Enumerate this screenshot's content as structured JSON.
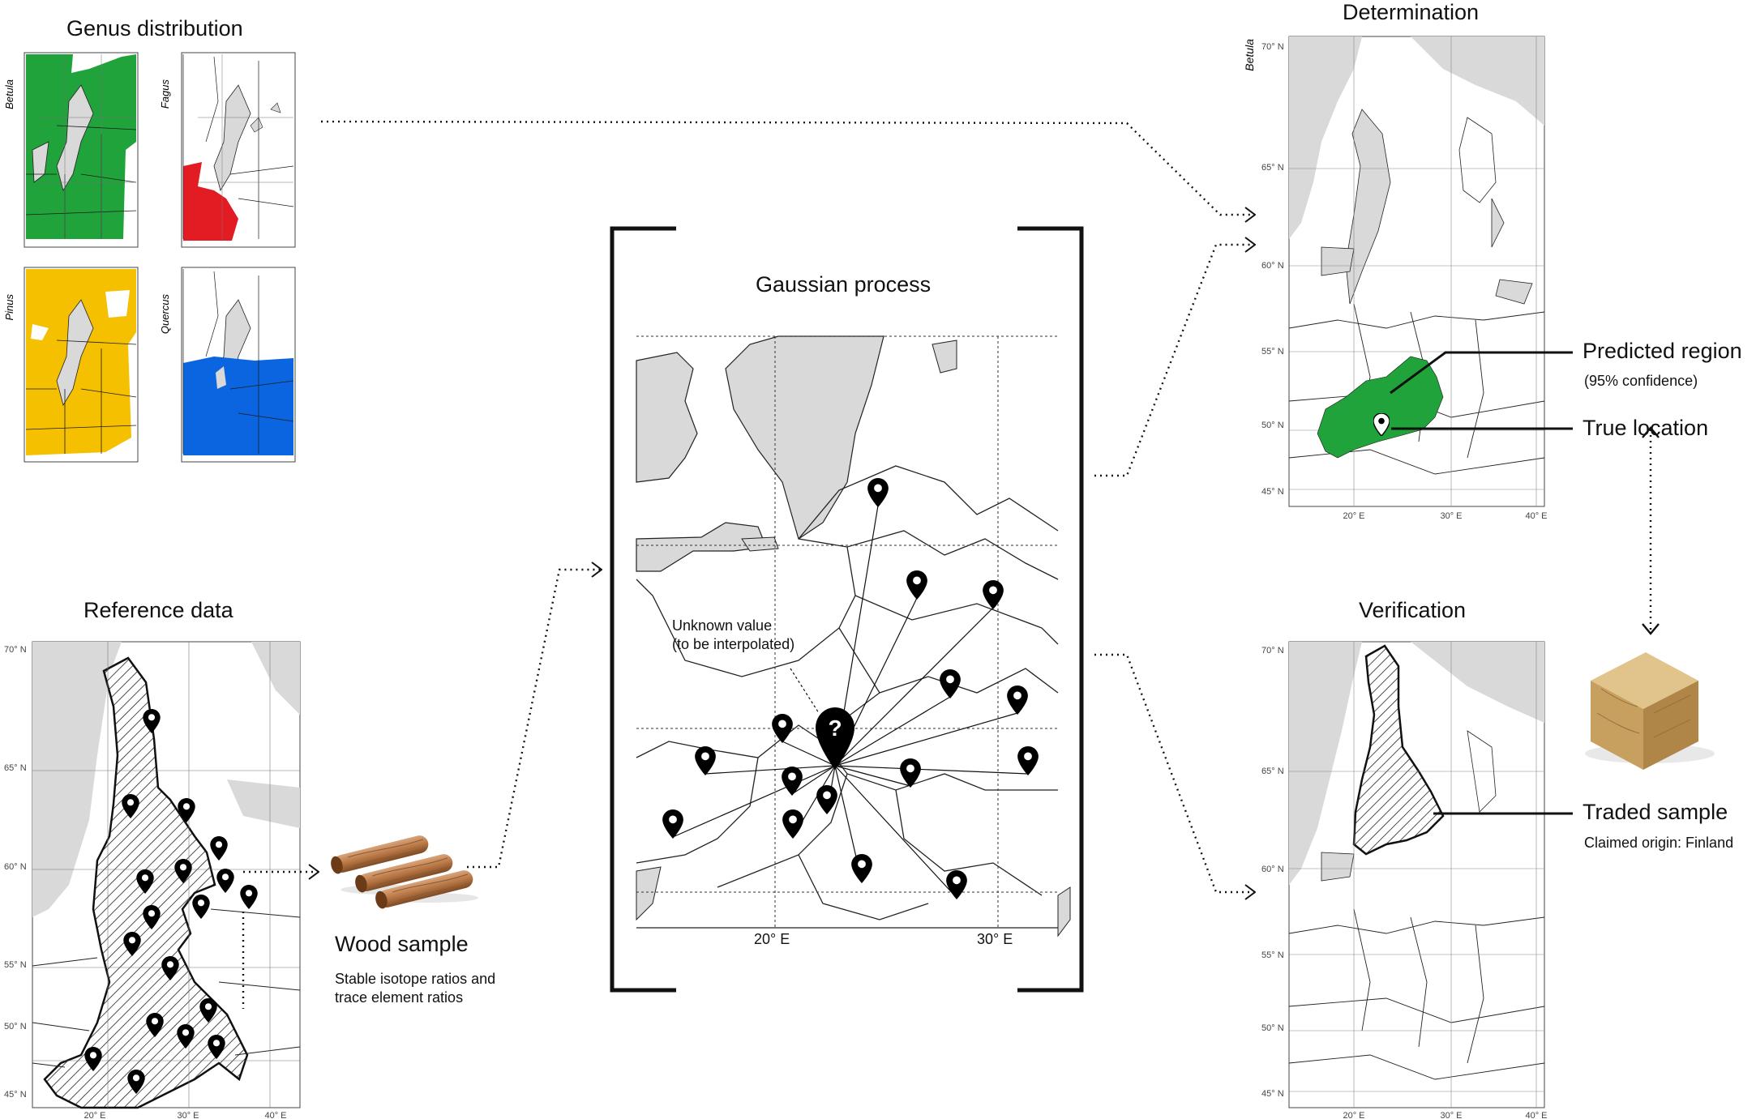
{
  "panels": {
    "genus": {
      "title": "Genus distribution",
      "maps": [
        {
          "genus": "Betula",
          "color": "#1fa33a"
        },
        {
          "genus": "Fagus",
          "color": "#e31b23"
        },
        {
          "genus": "Pinus",
          "color": "#f5c000"
        },
        {
          "genus": "Quercus",
          "color": "#0b64e0"
        }
      ]
    },
    "reference": {
      "title": "Reference data"
    },
    "wood_sample": {
      "title": "Wood sample",
      "description_line1": "Stable isotope ratios and",
      "description_line2": "trace element ratios"
    },
    "gaussian": {
      "title": "Gaussian process",
      "unknown_line1": "Unknown value",
      "unknown_line2": "(to be interpolated)",
      "x_ticks": [
        "20° E",
        "30° E"
      ]
    },
    "determination": {
      "title": "Determination",
      "genus": "Betula",
      "predicted_region": "Predicted region",
      "confidence": "(95% confidence)",
      "true_location": "True location",
      "region_color": "#1fa33a"
    },
    "verification": {
      "title": "Verification",
      "traded_sample": "Traded sample",
      "claimed_origin": "Claimed origin: Finland"
    }
  },
  "axis_labels": {
    "lat": [
      "70° N",
      "65° N",
      "60° N",
      "55° N",
      "50° N",
      "45° N"
    ],
    "lon": [
      "20° E",
      "30° E",
      "40° E"
    ]
  },
  "colors": {
    "land": "#ffffff",
    "sea": "#d9d9d9",
    "border": "#222222",
    "pin": "#000000"
  },
  "icons": [
    "location-pin-icon",
    "question-pin-icon",
    "wood-core-icon",
    "wood-cube-icon",
    "arrow-icon"
  ]
}
